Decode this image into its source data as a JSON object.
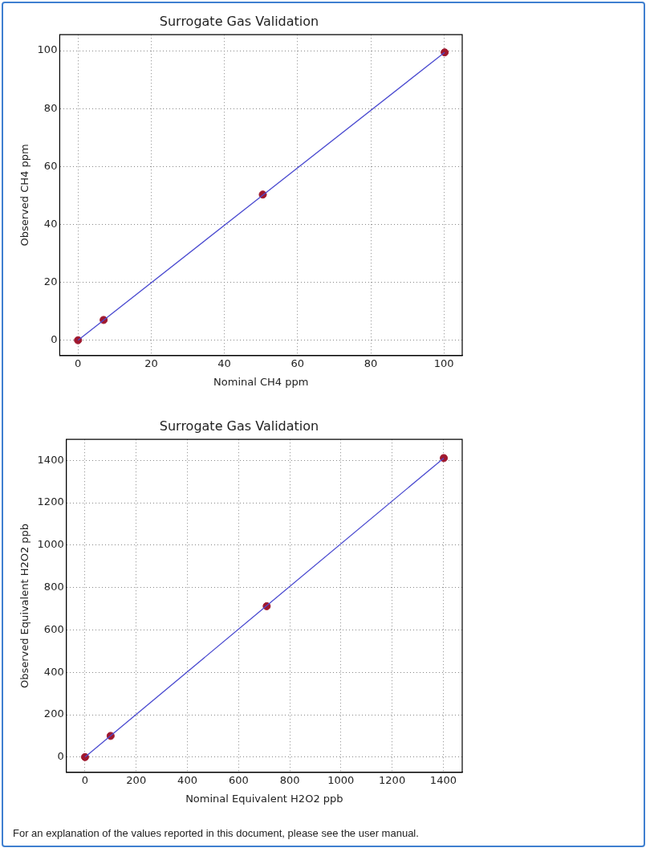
{
  "chart_data": [
    {
      "type": "scatter",
      "title": "Surrogate Gas Validation",
      "xlabel": "Nominal CH4 ppm",
      "ylabel": "Observed CH4 ppm",
      "xlim": [
        -5,
        105
      ],
      "ylim": [
        -5.3,
        105.5
      ],
      "xticks": [
        0,
        20,
        40,
        60,
        80,
        100
      ],
      "yticks": [
        0,
        20,
        40,
        60,
        80,
        100
      ],
      "grid": true,
      "series": [
        {
          "type": "line",
          "marker": "none",
          "color": "#4a4ad0",
          "x": [
            0,
            100.2
          ],
          "values": [
            0,
            99.4
          ]
        },
        {
          "type": "scatter",
          "marker": "circle",
          "color": "#a0182e",
          "x": [
            0,
            7,
            50.5,
            100.2
          ],
          "values": [
            0,
            7,
            50.3,
            99.4
          ]
        }
      ]
    },
    {
      "type": "scatter",
      "title": "Surrogate Gas Validation",
      "xlabel": "Nominal Equivalent H2O2 ppb",
      "ylabel": "Observed Equivalent H2O2 ppb",
      "xlim": [
        -73,
        1474
      ],
      "ylim": [
        -72,
        1499
      ],
      "xticks": [
        0,
        200,
        400,
        600,
        800,
        1000,
        1200,
        1400
      ],
      "yticks": [
        0,
        200,
        400,
        600,
        800,
        1000,
        1200,
        1400
      ],
      "grid": true,
      "series": [
        {
          "type": "line",
          "marker": "none",
          "color": "#4a4ad0",
          "x": [
            0,
            1402
          ],
          "values": [
            0,
            1411
          ]
        },
        {
          "type": "scatter",
          "marker": "circle",
          "color": "#a0182e",
          "x": [
            0,
            100,
            710,
            1402
          ],
          "values": [
            0,
            100,
            712,
            1411
          ]
        }
      ],
      "annotations": [
        "For an explanation of the values reported in this document, please see the user manual."
      ]
    }
  ]
}
